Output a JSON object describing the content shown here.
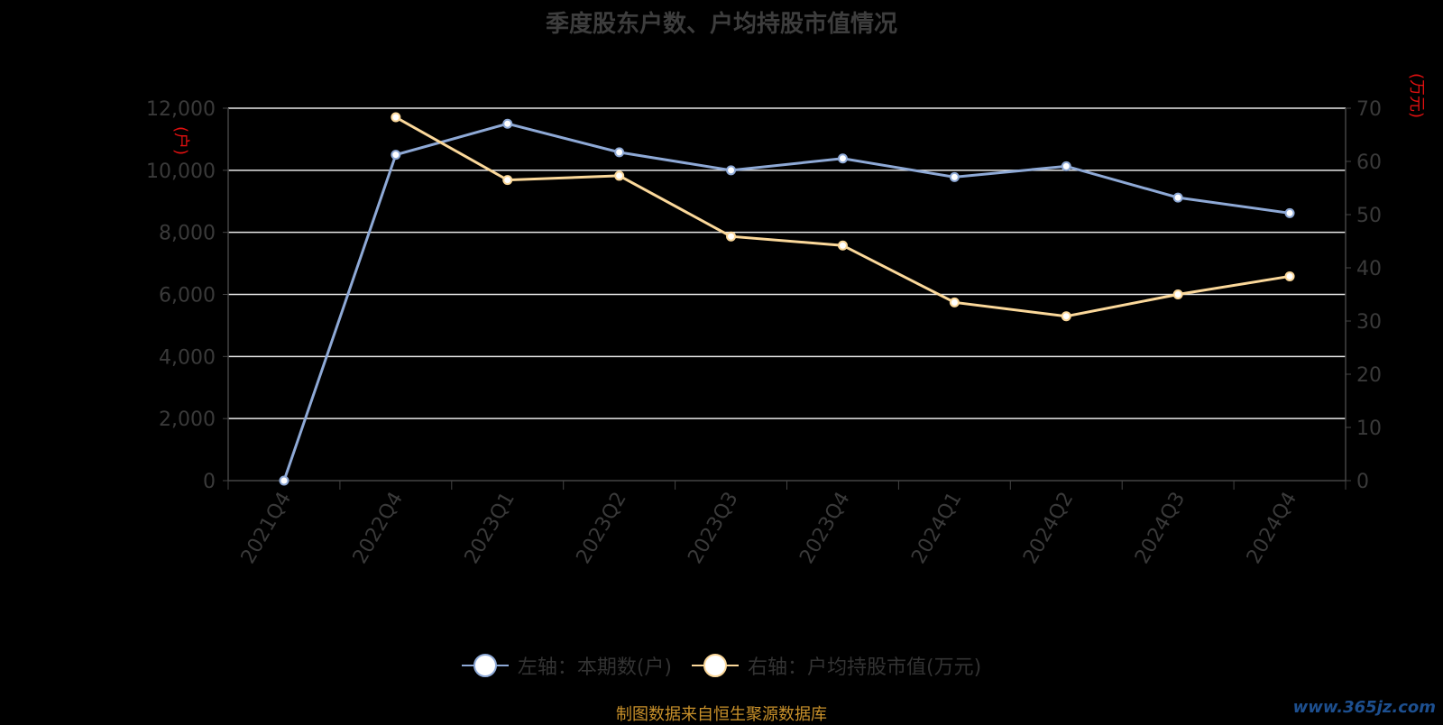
{
  "title": "季度股东户数、户均持股市值情况",
  "chart_data": {
    "type": "line",
    "categories": [
      "2021Q4",
      "2022Q4",
      "2023Q1",
      "2023Q2",
      "2023Q3",
      "2023Q4",
      "2024Q1",
      "2024Q2",
      "2024Q3",
      "2024Q4"
    ],
    "left_axis": {
      "unit": "(户)",
      "ylim": [
        0,
        12000
      ],
      "ticks": [
        "0",
        "2,000",
        "4,000",
        "6,000",
        "8,000",
        "10,000",
        "12,000"
      ]
    },
    "right_axis": {
      "unit": "(万元)",
      "ylim": [
        0,
        70
      ],
      "ticks": [
        "0",
        "10",
        "20",
        "30",
        "40",
        "50",
        "60",
        "70"
      ]
    },
    "grid": true,
    "series": [
      {
        "name": "左轴：本期数(户)",
        "axis": "left",
        "color": "#8ea9d6",
        "values": [
          0,
          10500,
          11500,
          10580,
          10000,
          10380,
          9780,
          10130,
          9120,
          8620
        ]
      },
      {
        "name": "右轴：户均持股市值(万元)",
        "axis": "right",
        "color": "#fbd89a",
        "values": [
          null,
          68.3,
          56.5,
          57.3,
          45.9,
          44.2,
          33.5,
          30.9,
          35.0,
          38.4
        ]
      }
    ]
  },
  "legend": {
    "items": [
      {
        "label": "左轴：本期数(户)",
        "color": "#8ea9d6"
      },
      {
        "label": "右轴：户均持股市值(万元)",
        "color": "#fbd89a"
      }
    ]
  },
  "source": "制图数据来自恒生聚源数据库",
  "watermark": "www.365jz.com"
}
